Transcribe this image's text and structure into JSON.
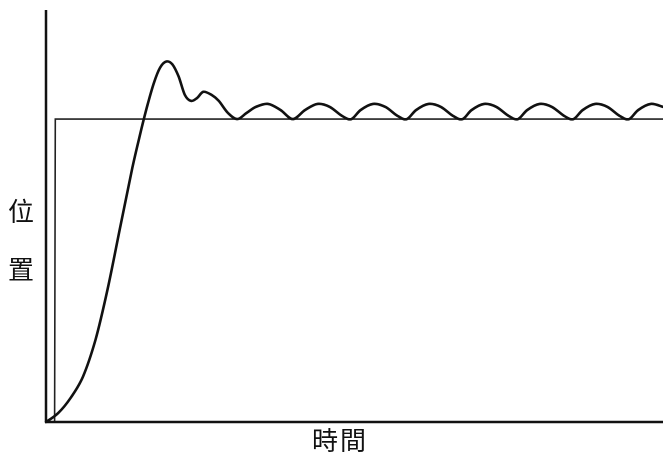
{
  "chart_data": {
    "type": "line",
    "title": "",
    "xlabel": "時間",
    "ylabel": "位置",
    "ylabel_chars": [
      "位",
      "置"
    ],
    "grid": false,
    "xlim": [
      0,
      100
    ],
    "ylim": [
      0,
      1.36
    ],
    "series": [
      {
        "values": [
          [
            0.0,
            0.0
          ],
          [
            1.4,
            0.0
          ],
          [
            1.5,
            1.0
          ],
          [
            100.0,
            1.0
          ]
        ]
      },
      {
        "values": [
          [
            0.0,
            0.0
          ],
          [
            2.0,
            0.03
          ],
          [
            4.0,
            0.08
          ],
          [
            6.0,
            0.15
          ],
          [
            8.0,
            0.27
          ],
          [
            10.0,
            0.44
          ],
          [
            12.0,
            0.64
          ],
          [
            14.0,
            0.84
          ],
          [
            15.5,
            0.97
          ],
          [
            16.5,
            1.05
          ],
          [
            17.5,
            1.12
          ],
          [
            18.5,
            1.17
          ],
          [
            19.5,
            1.19
          ],
          [
            20.5,
            1.18
          ],
          [
            21.5,
            1.14
          ],
          [
            22.5,
            1.08
          ],
          [
            23.5,
            1.06
          ],
          [
            24.5,
            1.07
          ],
          [
            25.5,
            1.09
          ],
          [
            26.8,
            1.08
          ],
          [
            28.0,
            1.06
          ],
          [
            29.5,
            1.02
          ],
          [
            31.0,
            1.0
          ],
          [
            32.5,
            1.02
          ],
          [
            34.0,
            1.04
          ],
          [
            36.0,
            1.05
          ],
          [
            38.0,
            1.03
          ],
          [
            40.0,
            1.0
          ],
          [
            42.0,
            1.03
          ],
          [
            44.0,
            1.05
          ],
          [
            46.0,
            1.04
          ],
          [
            48.0,
            1.01
          ],
          [
            49.5,
            1.0
          ],
          [
            51.0,
            1.03
          ],
          [
            53.0,
            1.05
          ],
          [
            55.0,
            1.04
          ],
          [
            57.0,
            1.01
          ],
          [
            58.5,
            1.0
          ],
          [
            60.0,
            1.03
          ],
          [
            62.0,
            1.05
          ],
          [
            64.0,
            1.04
          ],
          [
            66.0,
            1.01
          ],
          [
            67.5,
            1.0
          ],
          [
            69.0,
            1.03
          ],
          [
            71.0,
            1.05
          ],
          [
            73.0,
            1.04
          ],
          [
            75.0,
            1.01
          ],
          [
            76.5,
            1.0
          ],
          [
            78.0,
            1.03
          ],
          [
            80.0,
            1.05
          ],
          [
            82.0,
            1.04
          ],
          [
            84.0,
            1.01
          ],
          [
            85.5,
            1.0
          ],
          [
            87.0,
            1.03
          ],
          [
            89.0,
            1.05
          ],
          [
            91.0,
            1.04
          ],
          [
            93.0,
            1.01
          ],
          [
            94.5,
            1.0
          ],
          [
            96.0,
            1.03
          ],
          [
            98.0,
            1.05
          ],
          [
            100.0,
            1.04
          ]
        ]
      }
    ]
  },
  "colors": {
    "axis": "#111111",
    "reference_line": "#222222",
    "response_line": "#111111"
  }
}
